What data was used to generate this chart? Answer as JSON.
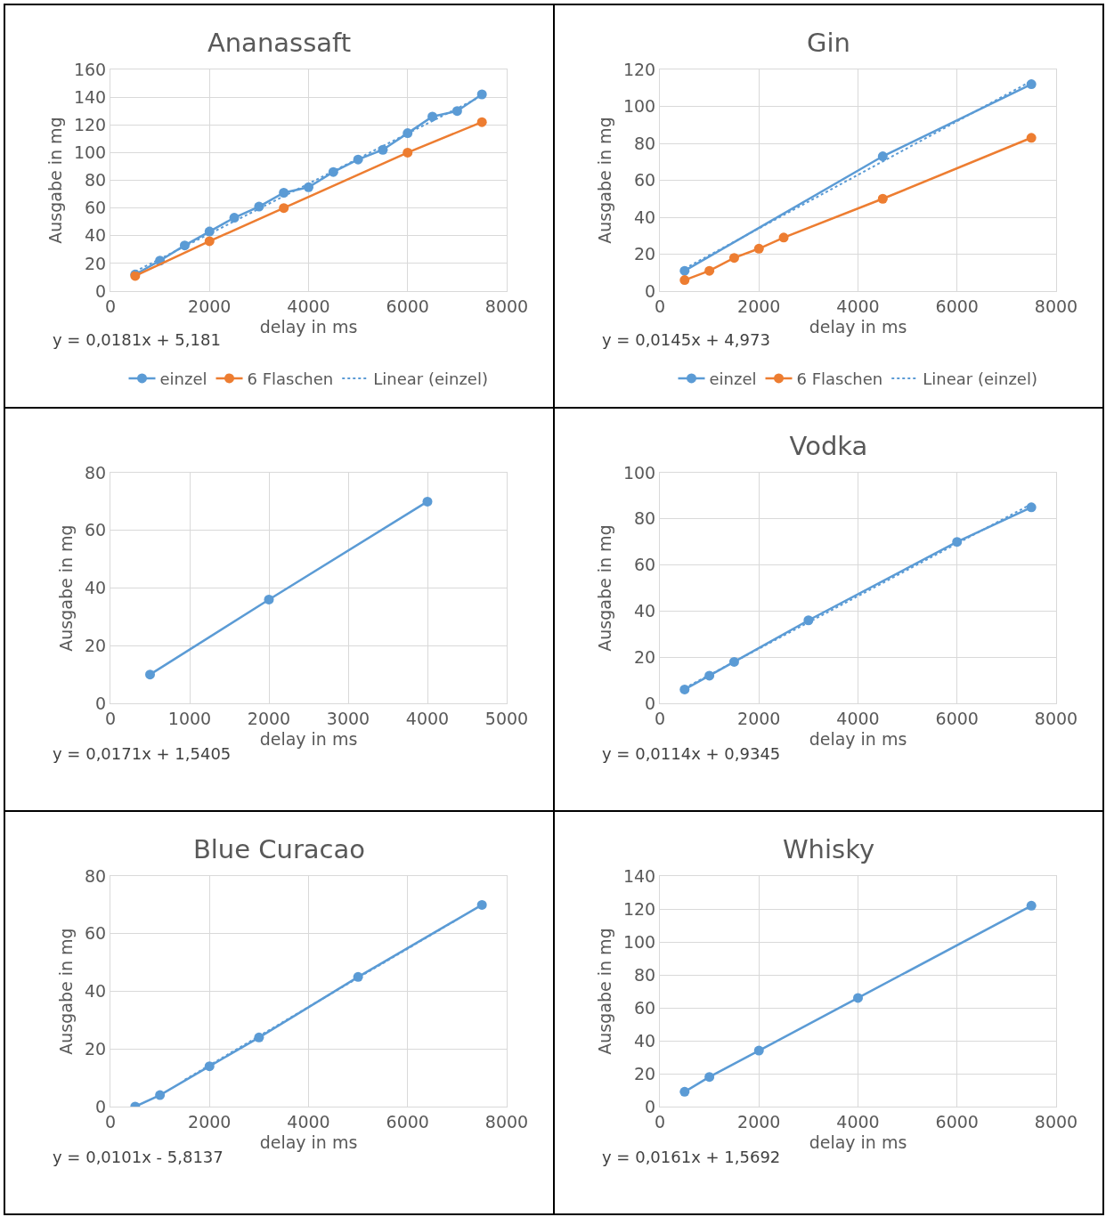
{
  "chart_data": [
    {
      "type": "line",
      "title": "Ananassaft",
      "xlabel": "delay in ms",
      "ylabel": "Ausgabe in mg",
      "xlim": [
        0,
        8000
      ],
      "xticks": [
        0,
        2000,
        4000,
        6000,
        8000
      ],
      "ylim": [
        0,
        160
      ],
      "yticks": [
        0,
        20,
        40,
        60,
        80,
        100,
        120,
        140,
        160
      ],
      "grid": true,
      "legend": "bottom",
      "marker": "circle",
      "line_style": "solid",
      "annotations": [
        "y = 0,0181x + 5,181"
      ],
      "series": [
        {
          "name": "einzel",
          "color": "#5b9bd5",
          "x": [
            500,
            1000,
            1500,
            2000,
            2500,
            3000,
            3500,
            4000,
            4500,
            5000,
            5500,
            6000,
            6500,
            7000,
            7500
          ],
          "values": [
            12,
            22,
            33,
            43,
            53,
            61,
            71,
            75,
            86,
            95,
            102,
            114,
            126,
            130,
            142
          ]
        },
        {
          "name": "6 Flaschen",
          "color": "#ed7d31",
          "x": [
            500,
            2000,
            3500,
            6000,
            7500
          ],
          "values": [
            11,
            36,
            60,
            100,
            122
          ]
        },
        {
          "name": "Linear (einzel)",
          "color": "#5b9bd5",
          "marker": "none",
          "line_style": "dotted",
          "x": [
            500,
            7500
          ],
          "values": [
            14.2,
            140.9
          ]
        }
      ]
    },
    {
      "type": "line",
      "title": "Gin",
      "xlabel": "delay in ms",
      "ylabel": "Ausgabe in mg",
      "xlim": [
        0,
        8000
      ],
      "xticks": [
        0,
        2000,
        4000,
        6000,
        8000
      ],
      "ylim": [
        0,
        120
      ],
      "yticks": [
        0,
        20,
        40,
        60,
        80,
        100,
        120
      ],
      "grid": true,
      "legend": "bottom",
      "marker": "circle",
      "line_style": "solid",
      "annotations": [
        "y = 0,0145x + 4,973"
      ],
      "series": [
        {
          "name": "einzel",
          "color": "#5b9bd5",
          "x": [
            500,
            4500,
            7500
          ],
          "values": [
            11,
            73,
            112
          ]
        },
        {
          "name": "6 Flaschen",
          "color": "#ed7d31",
          "x": [
            500,
            1000,
            1500,
            2000,
            2500,
            4500,
            7500
          ],
          "values": [
            6,
            11,
            18,
            23,
            29,
            50,
            83
          ]
        },
        {
          "name": "Linear (einzel)",
          "color": "#5b9bd5",
          "marker": "none",
          "line_style": "dotted",
          "x": [
            500,
            7500
          ],
          "values": [
            12.2,
            113.7
          ]
        }
      ]
    },
    {
      "type": "line",
      "xlabel": "delay in ms",
      "ylabel": "Ausgabe in mg",
      "xlim": [
        0,
        5000
      ],
      "xticks": [
        0,
        1000,
        2000,
        3000,
        4000,
        5000
      ],
      "ylim": [
        0,
        80
      ],
      "yticks": [
        0,
        20,
        40,
        60,
        80
      ],
      "grid": true,
      "marker": "circle",
      "line_style": "solid",
      "annotations": [
        "y = 0,0171x + 1,5405"
      ],
      "series": [
        {
          "color": "#5b9bd5",
          "x": [
            500,
            2000,
            4000
          ],
          "values": [
            10,
            36,
            70
          ]
        }
      ]
    },
    {
      "type": "line",
      "title": "Vodka",
      "xlabel": "delay in ms",
      "ylabel": "Ausgabe in mg",
      "xlim": [
        0,
        8000
      ],
      "xticks": [
        0,
        2000,
        4000,
        6000,
        8000
      ],
      "ylim": [
        0,
        100
      ],
      "yticks": [
        0,
        20,
        40,
        60,
        80,
        100
      ],
      "grid": true,
      "marker": "circle",
      "line_style": "solid",
      "annotations": [
        "y = 0,0114x + 0,9345"
      ],
      "series": [
        {
          "color": "#5b9bd5",
          "x": [
            500,
            1000,
            1500,
            3000,
            6000,
            7500
          ],
          "values": [
            6,
            12,
            18,
            36,
            70,
            85
          ]
        },
        {
          "color": "#5b9bd5",
          "marker": "none",
          "line_style": "dotted",
          "x": [
            500,
            7500
          ],
          "values": [
            6.6,
            86.4
          ]
        }
      ]
    },
    {
      "type": "line",
      "title": "Blue Curacao",
      "xlabel": "delay in ms",
      "ylabel": "Ausgabe in mg",
      "xlim": [
        0,
        8000
      ],
      "xticks": [
        0,
        2000,
        4000,
        6000,
        8000
      ],
      "ylim": [
        0,
        80
      ],
      "yticks": [
        0,
        20,
        40,
        60,
        80
      ],
      "grid": true,
      "marker": "circle",
      "line_style": "solid",
      "annotations": [
        "y = 0,0101x - 5,8137"
      ],
      "series": [
        {
          "color": "#5b9bd5",
          "x": [
            500,
            1000,
            2000,
            3000,
            5000,
            7500
          ],
          "values": [
            0,
            4,
            14,
            24,
            45,
            70
          ]
        },
        {
          "color": "#5b9bd5",
          "marker": "none",
          "line_style": "dotted",
          "x": [
            1500,
            7000
          ],
          "values": [
            9.3,
            64.9
          ]
        }
      ]
    },
    {
      "type": "line",
      "title": "Whisky",
      "xlabel": "delay in ms",
      "ylabel": "Ausgabe in mg",
      "xlim": [
        0,
        8000
      ],
      "xticks": [
        0,
        2000,
        4000,
        6000,
        8000
      ],
      "ylim": [
        0,
        140
      ],
      "yticks": [
        0,
        20,
        40,
        60,
        80,
        100,
        120,
        140
      ],
      "grid": true,
      "marker": "circle",
      "line_style": "solid",
      "annotations": [
        "y = 0,0161x + 1,5692"
      ],
      "series": [
        {
          "color": "#5b9bd5",
          "x": [
            500,
            1000,
            2000,
            4000,
            7500
          ],
          "values": [
            9,
            18,
            34,
            66,
            122
          ]
        }
      ]
    }
  ]
}
